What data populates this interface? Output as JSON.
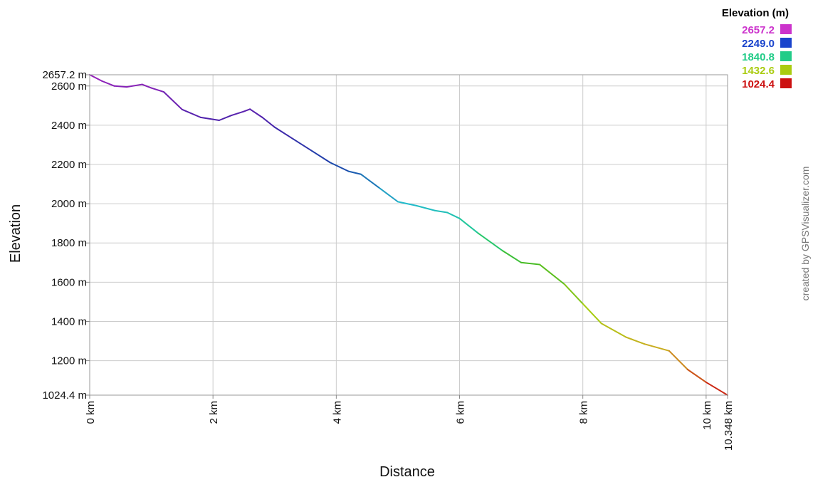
{
  "chart_data": {
    "type": "line",
    "xlabel": "Distance",
    "ylabel": "Elevation",
    "xlim": [
      0,
      10.348
    ],
    "ylim": [
      1024.4,
      2657.2
    ],
    "x_ticks": [
      {
        "value": 0,
        "label": "0 km"
      },
      {
        "value": 2,
        "label": "2 km"
      },
      {
        "value": 4,
        "label": "4 km"
      },
      {
        "value": 6,
        "label": "6 km"
      },
      {
        "value": 8,
        "label": "8 km"
      },
      {
        "value": 10,
        "label": "10 km"
      },
      {
        "value": 10.348,
        "label": "10.348 km"
      }
    ],
    "y_ticks": [
      {
        "value": 2657.2,
        "label": "2657.2 m"
      },
      {
        "value": 2600,
        "label": "2600 m"
      },
      {
        "value": 2400,
        "label": "2400 m"
      },
      {
        "value": 2200,
        "label": "2200 m"
      },
      {
        "value": 2000,
        "label": "2000 m"
      },
      {
        "value": 1800,
        "label": "1800 m"
      },
      {
        "value": 1600,
        "label": "1600 m"
      },
      {
        "value": 1400,
        "label": "1400 m"
      },
      {
        "value": 1200,
        "label": "1200 m"
      },
      {
        "value": 1024.4,
        "label": "1024.4 m"
      }
    ],
    "grid": true,
    "legend": {
      "title": "Elevation (m)",
      "position": "top-right",
      "entries": [
        {
          "label": "2657.2",
          "color": "#cc33cc"
        },
        {
          "label": "2249.0",
          "color": "#1a44cc"
        },
        {
          "label": "1840.8",
          "color": "#22cc88"
        },
        {
          "label": "1432.6",
          "color": "#aacc11"
        },
        {
          "label": "1024.4",
          "color": "#cc1111"
        }
      ]
    },
    "color_scale": [
      {
        "elev": 2657.2,
        "color": "#9922bb"
      },
      {
        "elev": 2400,
        "color": "#4422aa"
      },
      {
        "elev": 2200,
        "color": "#1a44aa"
      },
      {
        "elev": 2000,
        "color": "#22bbcc"
      },
      {
        "elev": 1840.8,
        "color": "#22cc88"
      },
      {
        "elev": 1700,
        "color": "#44bb22"
      },
      {
        "elev": 1432.6,
        "color": "#aacc11"
      },
      {
        "elev": 1250,
        "color": "#ccaa22"
      },
      {
        "elev": 1024.4,
        "color": "#cc1111"
      }
    ],
    "series": [
      {
        "x": [
          0,
          0.2,
          0.4,
          0.6,
          0.85,
          1.0,
          1.2,
          1.5,
          1.8,
          2.1,
          2.3,
          2.5,
          2.6,
          2.8,
          3.0,
          3.3,
          3.6,
          3.9,
          4.2,
          4.4,
          4.7,
          5.0,
          5.3,
          5.6,
          5.8,
          6.0,
          6.3,
          6.7,
          7.0,
          7.3,
          7.7,
          8.0,
          8.3,
          8.7,
          9.0,
          9.4,
          9.7,
          10.0,
          10.348
        ],
        "y": [
          2657.2,
          2625,
          2600,
          2595,
          2608,
          2590,
          2570,
          2480,
          2440,
          2425,
          2450,
          2470,
          2482,
          2440,
          2390,
          2330,
          2270,
          2210,
          2165,
          2150,
          2080,
          2010,
          1990,
          1965,
          1955,
          1925,
          1850,
          1760,
          1700,
          1690,
          1590,
          1490,
          1390,
          1320,
          1285,
          1250,
          1155,
          1090,
          1024.4
        ]
      }
    ]
  },
  "credit": "created by GPSVisualizer.com"
}
